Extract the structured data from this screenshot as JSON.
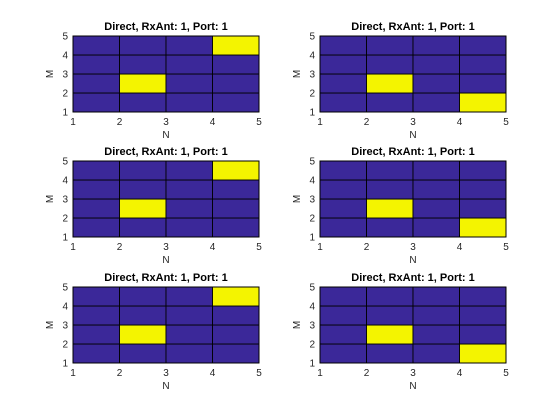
{
  "colors": {
    "low": "#3b2899",
    "high": "#f4f400",
    "grid": "#000000"
  },
  "chart_data": [
    {
      "type": "heatmap",
      "title": "Direct, RxAnt: 1, Port: 1",
      "xlabel": "N",
      "ylabel": "M",
      "xlim": [
        1,
        5
      ],
      "ylim": [
        1,
        5
      ],
      "xticks": [
        "1",
        "2",
        "3",
        "4",
        "5"
      ],
      "yticks": [
        "1",
        "2",
        "3",
        "4",
        "5"
      ],
      "grid": true,
      "cells": [
        [
          1,
          1,
          0
        ],
        [
          2,
          1,
          0
        ],
        [
          3,
          1,
          0
        ],
        [
          4,
          1,
          0
        ],
        [
          1,
          2,
          0
        ],
        [
          2,
          2,
          1
        ],
        [
          3,
          2,
          0
        ],
        [
          4,
          2,
          0
        ],
        [
          1,
          3,
          0
        ],
        [
          2,
          3,
          0
        ],
        [
          3,
          3,
          0
        ],
        [
          4,
          3,
          0
        ],
        [
          1,
          4,
          0
        ],
        [
          2,
          4,
          0
        ],
        [
          3,
          4,
          0
        ],
        [
          4,
          4,
          1
        ]
      ]
    },
    {
      "type": "heatmap",
      "title": "Direct, RxAnt: 1, Port: 1",
      "xlabel": "N",
      "ylabel": "M",
      "xlim": [
        1,
        5
      ],
      "ylim": [
        1,
        5
      ],
      "xticks": [
        "1",
        "2",
        "3",
        "4",
        "5"
      ],
      "yticks": [
        "1",
        "2",
        "3",
        "4",
        "5"
      ],
      "grid": true,
      "cells": [
        [
          1,
          1,
          0
        ],
        [
          2,
          1,
          0
        ],
        [
          3,
          1,
          0
        ],
        [
          4,
          1,
          1
        ],
        [
          1,
          2,
          0
        ],
        [
          2,
          2,
          1
        ],
        [
          3,
          2,
          0
        ],
        [
          4,
          2,
          0
        ],
        [
          1,
          3,
          0
        ],
        [
          2,
          3,
          0
        ],
        [
          3,
          3,
          0
        ],
        [
          4,
          3,
          0
        ],
        [
          1,
          4,
          0
        ],
        [
          2,
          4,
          0
        ],
        [
          3,
          4,
          0
        ],
        [
          4,
          4,
          0
        ]
      ]
    },
    {
      "type": "heatmap",
      "title": "Direct, RxAnt: 1, Port: 1",
      "xlabel": "N",
      "ylabel": "M",
      "xlim": [
        1,
        5
      ],
      "ylim": [
        1,
        5
      ],
      "xticks": [
        "1",
        "2",
        "3",
        "4",
        "5"
      ],
      "yticks": [
        "1",
        "2",
        "3",
        "4",
        "5"
      ],
      "grid": true,
      "cells": [
        [
          1,
          1,
          0
        ],
        [
          2,
          1,
          0
        ],
        [
          3,
          1,
          0
        ],
        [
          4,
          1,
          0
        ],
        [
          1,
          2,
          0
        ],
        [
          2,
          2,
          1
        ],
        [
          3,
          2,
          0
        ],
        [
          4,
          2,
          0
        ],
        [
          1,
          3,
          0
        ],
        [
          2,
          3,
          0
        ],
        [
          3,
          3,
          0
        ],
        [
          4,
          3,
          0
        ],
        [
          1,
          4,
          0
        ],
        [
          2,
          4,
          0
        ],
        [
          3,
          4,
          0
        ],
        [
          4,
          4,
          1
        ]
      ]
    },
    {
      "type": "heatmap",
      "title": "Direct, RxAnt: 1, Port: 1",
      "xlabel": "N",
      "ylabel": "M",
      "xlim": [
        1,
        5
      ],
      "ylim": [
        1,
        5
      ],
      "xticks": [
        "1",
        "2",
        "3",
        "4",
        "5"
      ],
      "yticks": [
        "1",
        "2",
        "3",
        "4",
        "5"
      ],
      "grid": true,
      "cells": [
        [
          1,
          1,
          0
        ],
        [
          2,
          1,
          0
        ],
        [
          3,
          1,
          0
        ],
        [
          4,
          1,
          1
        ],
        [
          1,
          2,
          0
        ],
        [
          2,
          2,
          1
        ],
        [
          3,
          2,
          0
        ],
        [
          4,
          2,
          0
        ],
        [
          1,
          3,
          0
        ],
        [
          2,
          3,
          0
        ],
        [
          3,
          3,
          0
        ],
        [
          4,
          3,
          0
        ],
        [
          1,
          4,
          0
        ],
        [
          2,
          4,
          0
        ],
        [
          3,
          4,
          0
        ],
        [
          4,
          4,
          0
        ]
      ]
    },
    {
      "type": "heatmap",
      "title": "Direct, RxAnt: 1, Port: 1",
      "xlabel": "N",
      "ylabel": "M",
      "xlim": [
        1,
        5
      ],
      "ylim": [
        1,
        5
      ],
      "xticks": [
        "1",
        "2",
        "3",
        "4",
        "5"
      ],
      "yticks": [
        "1",
        "2",
        "3",
        "4",
        "5"
      ],
      "grid": true,
      "cells": [
        [
          1,
          1,
          0
        ],
        [
          2,
          1,
          0
        ],
        [
          3,
          1,
          0
        ],
        [
          4,
          1,
          0
        ],
        [
          1,
          2,
          0
        ],
        [
          2,
          2,
          1
        ],
        [
          3,
          2,
          0
        ],
        [
          4,
          2,
          0
        ],
        [
          1,
          3,
          0
        ],
        [
          2,
          3,
          0
        ],
        [
          3,
          3,
          0
        ],
        [
          4,
          3,
          0
        ],
        [
          1,
          4,
          0
        ],
        [
          2,
          4,
          0
        ],
        [
          3,
          4,
          0
        ],
        [
          4,
          4,
          1
        ]
      ]
    },
    {
      "type": "heatmap",
      "title": "Direct, RxAnt: 1, Port: 1",
      "xlabel": "N",
      "ylabel": "M",
      "xlim": [
        1,
        5
      ],
      "ylim": [
        1,
        5
      ],
      "xticks": [
        "1",
        "2",
        "3",
        "4",
        "5"
      ],
      "yticks": [
        "1",
        "2",
        "3",
        "4",
        "5"
      ],
      "grid": true,
      "cells": [
        [
          1,
          1,
          0
        ],
        [
          2,
          1,
          0
        ],
        [
          3,
          1,
          0
        ],
        [
          4,
          1,
          1
        ],
        [
          1,
          2,
          0
        ],
        [
          2,
          2,
          1
        ],
        [
          3,
          2,
          0
        ],
        [
          4,
          2,
          0
        ],
        [
          1,
          3,
          0
        ],
        [
          2,
          3,
          0
        ],
        [
          3,
          3,
          0
        ],
        [
          4,
          3,
          0
        ],
        [
          1,
          4,
          0
        ],
        [
          2,
          4,
          0
        ],
        [
          3,
          4,
          0
        ],
        [
          4,
          4,
          0
        ]
      ]
    }
  ]
}
